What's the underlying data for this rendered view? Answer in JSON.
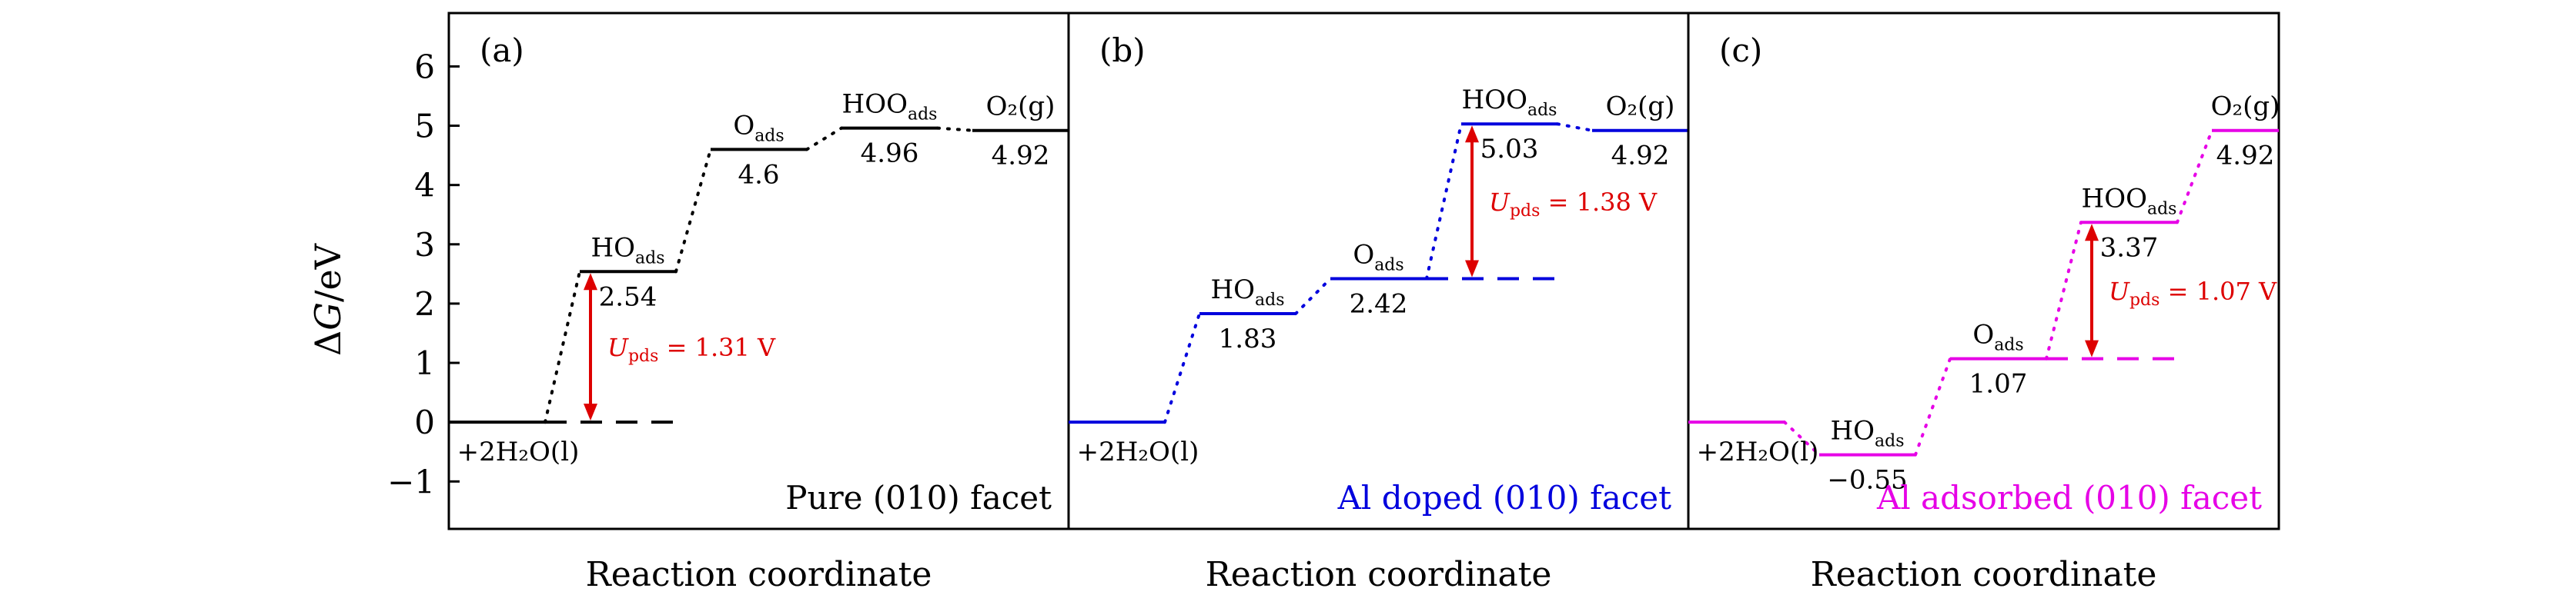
{
  "figure": {
    "ylabel_prefix": "Δ",
    "ylabel_var": "G",
    "ylabel_suffix": "/eV",
    "yticks": [
      "−1",
      "0",
      "1",
      "2",
      "3",
      "4",
      "5",
      "6"
    ]
  },
  "chart_data": [
    {
      "type": "line",
      "panel_label": "(a)",
      "facet_label": "Pure (010) facet",
      "xlabel": "Reaction coordinate",
      "ylabel": "ΔG/eV",
      "ylim": [
        -1.8,
        6.9
      ],
      "color": "#000000",
      "steps": [
        {
          "species": "+2H₂O(l)",
          "energy": 0,
          "value_label": ""
        },
        {
          "species": "HOads",
          "energy": 2.54,
          "value_label": "2.54"
        },
        {
          "species": "Oads",
          "energy": 4.6,
          "value_label": "4.6"
        },
        {
          "species": "HOOads",
          "energy": 4.96,
          "value_label": "4.96"
        },
        {
          "species": "O₂(g)",
          "energy": 4.92,
          "value_label": "4.92"
        }
      ],
      "pds_label": "Upds = 1.31 V",
      "pds_value": 1.31
    },
    {
      "type": "line",
      "panel_label": "(b)",
      "facet_label": "Al doped (010) facet",
      "xlabel": "Reaction coordinate",
      "ylabel": "ΔG/eV",
      "ylim": [
        -1.8,
        6.9
      ],
      "color": "#0000dd",
      "steps": [
        {
          "species": "+2H₂O(l)",
          "energy": 0,
          "value_label": ""
        },
        {
          "species": "HOads",
          "energy": 1.83,
          "value_label": "1.83"
        },
        {
          "species": "Oads",
          "energy": 2.42,
          "value_label": "2.42"
        },
        {
          "species": "HOOads",
          "energy": 5.03,
          "value_label": "5.03"
        },
        {
          "species": "O₂(g)",
          "energy": 4.92,
          "value_label": "4.92"
        }
      ],
      "pds_label": "Upds = 1.38 V",
      "pds_value": 1.38
    },
    {
      "type": "line",
      "panel_label": "(c)",
      "facet_label": "Al adsorbed (010) facet",
      "xlabel": "Reaction coordinate",
      "ylabel": "ΔG/eV",
      "ylim": [
        -1.8,
        6.9
      ],
      "color": "#e600e6",
      "steps": [
        {
          "species": "+2H₂O(l)",
          "energy": 0,
          "value_label": ""
        },
        {
          "species": "HOads",
          "energy": -0.55,
          "value_label": "−0.55"
        },
        {
          "species": "Oads",
          "energy": 1.07,
          "value_label": "1.07"
        },
        {
          "species": "HOOads",
          "energy": 3.37,
          "value_label": "3.37"
        },
        {
          "species": "O₂(g)",
          "energy": 4.92,
          "value_label": "4.92"
        }
      ],
      "pds_label": "Upds = 1.07 V",
      "pds_value": 1.07
    }
  ]
}
